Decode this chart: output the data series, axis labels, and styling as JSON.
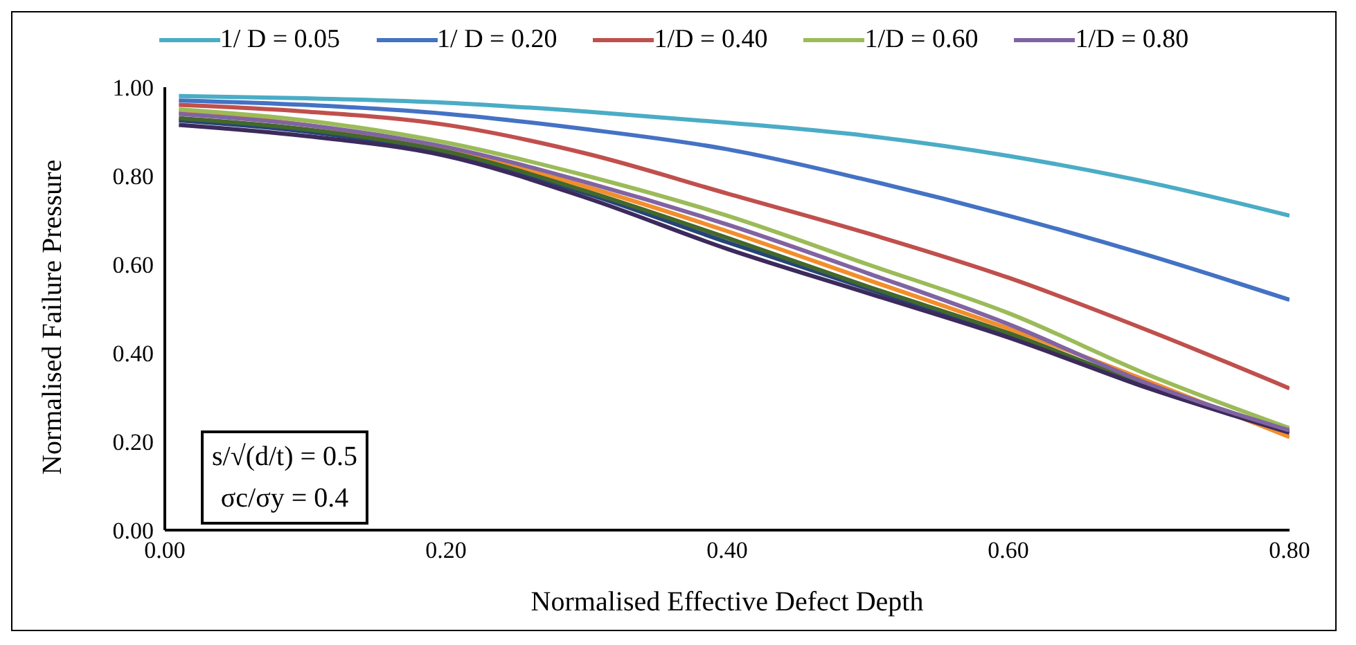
{
  "chart_data": {
    "type": "line",
    "xlabel": "Normalised Effective Defect Depth",
    "ylabel": "Normalised Failure Pressure",
    "x": [
      0.01,
      0.1,
      0.2,
      0.3,
      0.4,
      0.5,
      0.6,
      0.7,
      0.8
    ],
    "xlim": [
      0,
      0.8
    ],
    "xticks": [
      {
        "value": 0,
        "label": "0.00"
      },
      {
        "value": 0.2,
        "label": "0.20"
      },
      {
        "value": 0.4,
        "label": "0.40"
      },
      {
        "value": 0.6,
        "label": "0.60"
      },
      {
        "value": 0.8,
        "label": "0.80"
      }
    ],
    "ylim": [
      0,
      1
    ],
    "yticks": [
      {
        "value": 0,
        "label": "0.00"
      },
      {
        "value": 0.2,
        "label": "0.20"
      },
      {
        "value": 0.4,
        "label": "0.40"
      },
      {
        "value": 0.6,
        "label": "0.60"
      },
      {
        "value": 0.8,
        "label": "0.80"
      },
      {
        "value": 1,
        "label": "1.00"
      }
    ],
    "grid": false,
    "legend": "top",
    "marker": "none",
    "line_style": "solid",
    "series": [
      {
        "color": "#f28e2b",
        "values": [
          0.945,
          0.915,
          0.86,
          0.775,
          0.675,
          0.565,
          0.455,
          null,
          0.21
        ]
      },
      {
        "color": "#264478",
        "values": [
          0.925,
          0.9,
          0.85,
          0.76,
          0.65,
          0.545,
          0.44,
          0.32,
          0.225
        ]
      },
      {
        "color": "#43682b",
        "values": [
          0.93,
          0.905,
          0.855,
          0.765,
          0.66,
          0.55,
          0.445,
          0.325,
          0.225
        ]
      },
      {
        "color": "#3c2a5c",
        "values": [
          0.915,
          0.89,
          0.845,
          0.75,
          0.635,
          0.535,
          0.435,
          0.32,
          0.22
        ]
      },
      {
        "name": "1/ D = 0.05",
        "color": "#4bacc6",
        "values": [
          0.98,
          0.975,
          0.965,
          0.945,
          0.92,
          0.89,
          0.845,
          0.785,
          0.71
        ]
      },
      {
        "name": "1/ D = 0.20",
        "color": "#4472c4",
        "values": [
          0.97,
          0.96,
          0.94,
          0.905,
          0.86,
          0.79,
          0.71,
          0.62,
          0.52
        ]
      },
      {
        "name": "1/D = 0.40",
        "color": "#c0504d",
        "values": [
          0.96,
          0.945,
          0.915,
          0.85,
          0.76,
          0.67,
          0.57,
          0.45,
          0.32
        ]
      },
      {
        "name": "1/D = 0.60",
        "color": "#9bbb59",
        "values": [
          0.95,
          0.925,
          0.875,
          0.8,
          0.71,
          0.6,
          0.49,
          0.35,
          0.23
        ]
      },
      {
        "name": "1/D = 0.80",
        "color": "#8064a2",
        "values": [
          0.94,
          0.915,
          0.865,
          0.785,
          0.69,
          0.58,
          0.465,
          0.33,
          0.225
        ]
      }
    ],
    "annotations": [
      "s/√(d/t) = 0.5",
      "σc/σy = 0.4"
    ]
  }
}
